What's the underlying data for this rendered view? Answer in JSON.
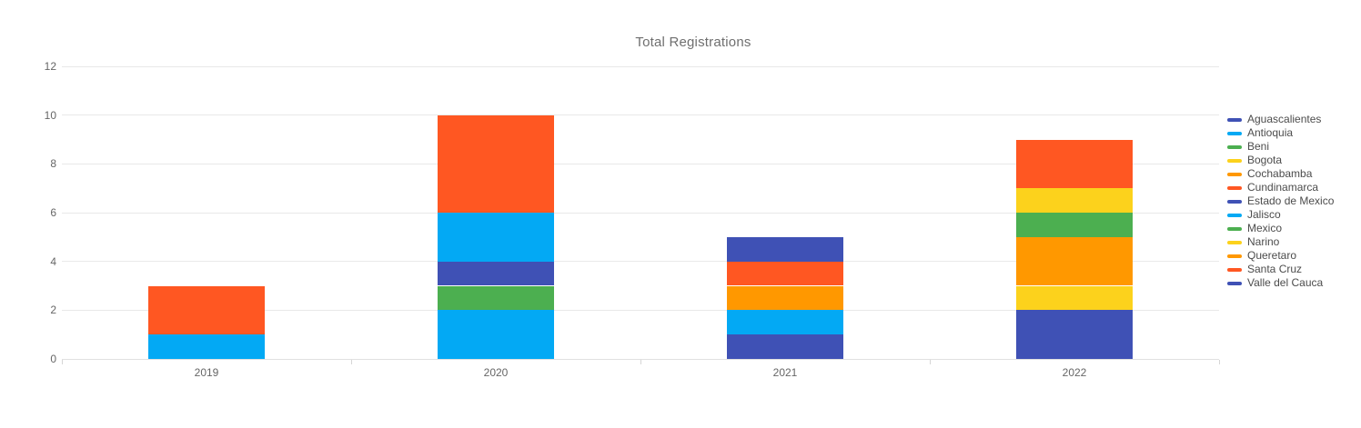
{
  "chart_data": {
    "type": "bar",
    "stacked": true,
    "title": "Total Registrations",
    "xlabel": "",
    "ylabel": "",
    "categories": [
      "2019",
      "2020",
      "2021",
      "2022"
    ],
    "series": [
      {
        "name": "Aguascalientes",
        "color": "#3f51b5",
        "values": [
          0,
          0,
          1,
          2
        ]
      },
      {
        "name": "Antioquia",
        "color": "#03a9f4",
        "values": [
          1,
          2,
          1,
          0
        ]
      },
      {
        "name": "Beni",
        "color": "#4caf50",
        "values": [
          0,
          1,
          0,
          0
        ]
      },
      {
        "name": "Bogota",
        "color": "#fcd21c",
        "values": [
          0,
          0,
          0,
          1
        ]
      },
      {
        "name": "Cochabamba",
        "color": "#ff9800",
        "values": [
          0,
          0,
          0,
          2
        ]
      },
      {
        "name": "Cundinamarca",
        "color": "#ff5722",
        "values": [
          2,
          0,
          0,
          0
        ]
      },
      {
        "name": "Estado de Mexico",
        "color": "#3f51b5",
        "values": [
          0,
          1,
          0,
          0
        ]
      },
      {
        "name": "Jalisco",
        "color": "#03a9f4",
        "values": [
          0,
          2,
          0,
          0
        ]
      },
      {
        "name": "Mexico",
        "color": "#4caf50",
        "values": [
          0,
          0,
          0,
          1
        ]
      },
      {
        "name": "Narino",
        "color": "#fcd21c",
        "values": [
          0,
          0,
          0,
          1
        ]
      },
      {
        "name": "Queretaro",
        "color": "#ff9800",
        "values": [
          0,
          0,
          1,
          0
        ]
      },
      {
        "name": "Santa Cruz",
        "color": "#ff5722",
        "values": [
          0,
          4,
          1,
          2
        ]
      },
      {
        "name": "Valle del Cauca",
        "color": "#3f51b5",
        "values": [
          0,
          0,
          1,
          0
        ]
      }
    ],
    "category_totals": [
      3,
      10,
      5,
      9
    ],
    "y_ticks": [
      0,
      2,
      4,
      6,
      8,
      10,
      12
    ],
    "ylim": [
      0,
      12
    ],
    "grid": true,
    "legend_position": "right"
  }
}
